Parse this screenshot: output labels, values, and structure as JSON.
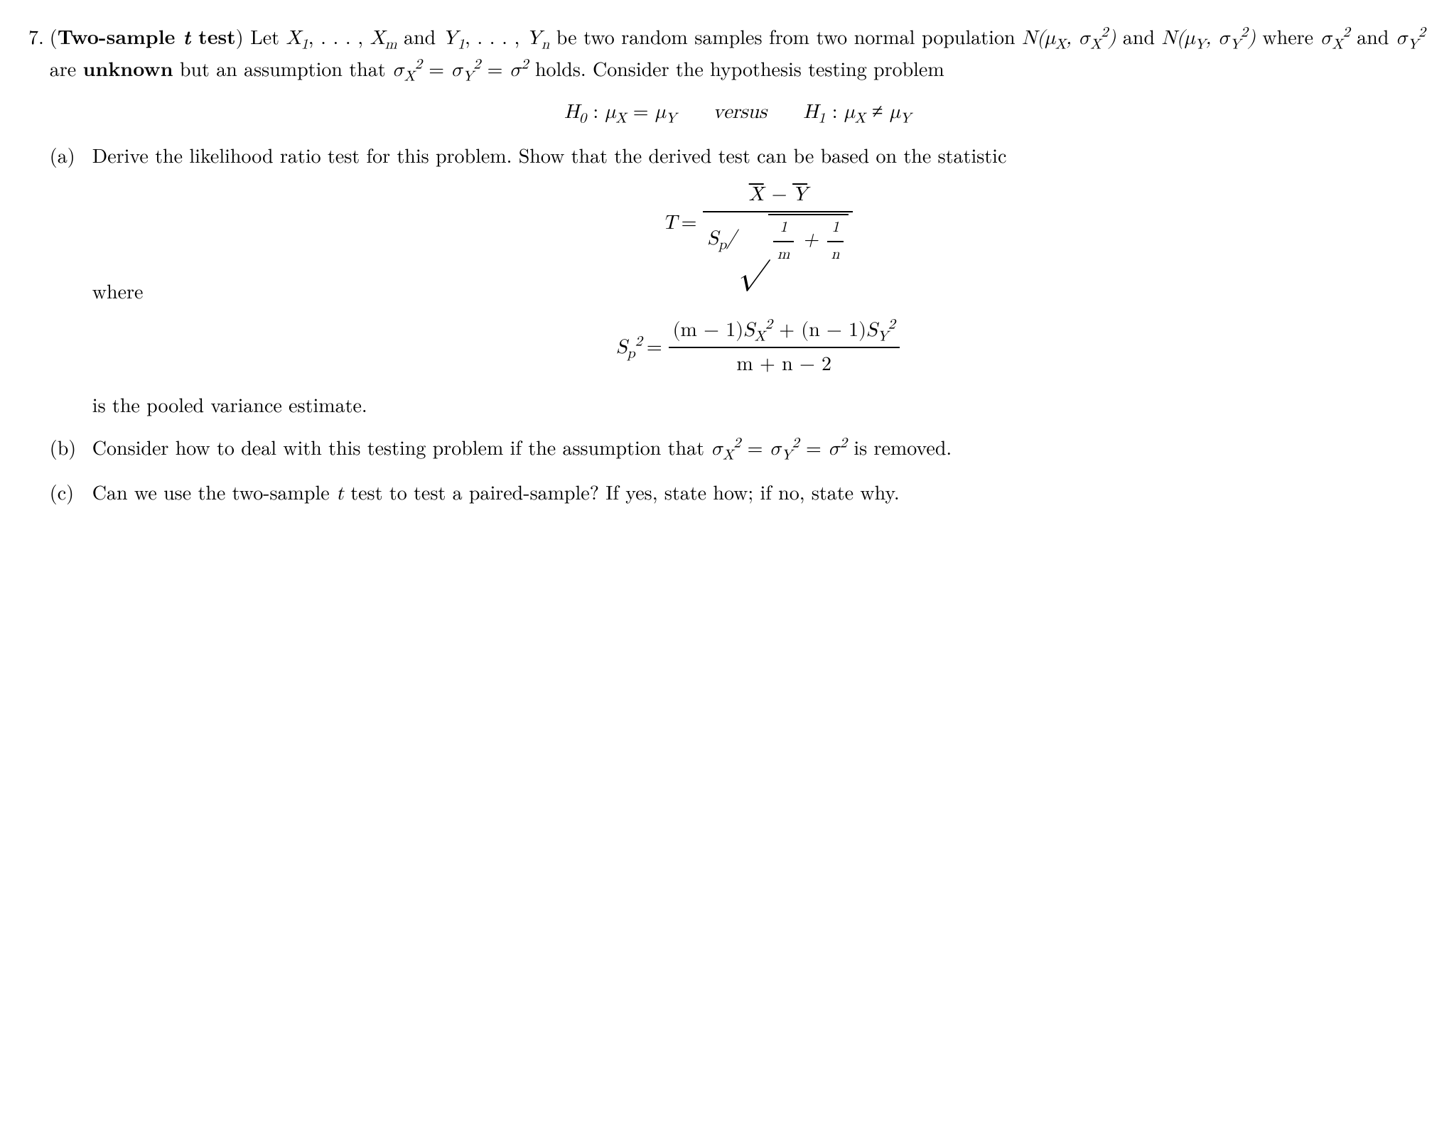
{
  "problem_number": "7.",
  "title_prefix": "(",
  "title_bold": "Two-sample ",
  "title_italic_t": "t",
  "title_bold2": " test",
  "title_suffix": ") ",
  "intro_1": "Let ",
  "X1": "X",
  "sub1": "1",
  "ldots": ", . . . , ",
  "Xm": "X",
  "subm": "m",
  "and1": " and ",
  "Y1": "Y",
  "Yn": "Y",
  "subn": "n",
  "intro_2": " be two random samples from two normal population ",
  "N": "N",
  "muX": "μ",
  "muXs": "X",
  "sigma": "σ",
  "sigXs": "X",
  "sq": "2",
  "and2": " and ",
  "muYs": "Y",
  "sigYs": "Y",
  "where": " where ",
  "unknown_pre": " are ",
  "unknown": "unknown",
  "assumption": " but an assumption that ",
  "eq": " = ",
  "holds": " holds. Consider the hypothesis testing problem",
  "H0": "H",
  "H0s": "0",
  "colon": " : ",
  "versus": "versus",
  "H1": "H",
  "H1s": "1",
  "neq": " ≠ ",
  "a_label": "(a)",
  "a_text1": "Derive the likelihood ratio test for this problem. Show that the derived test can be based on the statistic",
  "T": "T",
  "Xbar": "X̄",
  "minus": " − ",
  "Ybar": "Ȳ",
  "Sp": "S",
  "pSub": "p",
  "one": "1",
  "m": "m",
  "n": "n",
  "plus": " + ",
  "where_label": "where",
  "Sp2_lhs": "S",
  "pooled_num_1": "(m − 1)",
  "SX": "S",
  "pooled_num_2": " + (n − 1)",
  "SY": "S",
  "pooled_den": "m + n − 2",
  "pooled_text": "is the pooled variance estimate.",
  "b_label": "(b)",
  "b_text": "Consider how to deal with this testing problem if the assumption that ",
  "b_text2": " is removed.",
  "c_label": "(c)",
  "c_text1": "Can we use the two-sample ",
  "c_text2": " test to test a paired-sample? If yes, state how; if no, state why.",
  "slash": "/"
}
